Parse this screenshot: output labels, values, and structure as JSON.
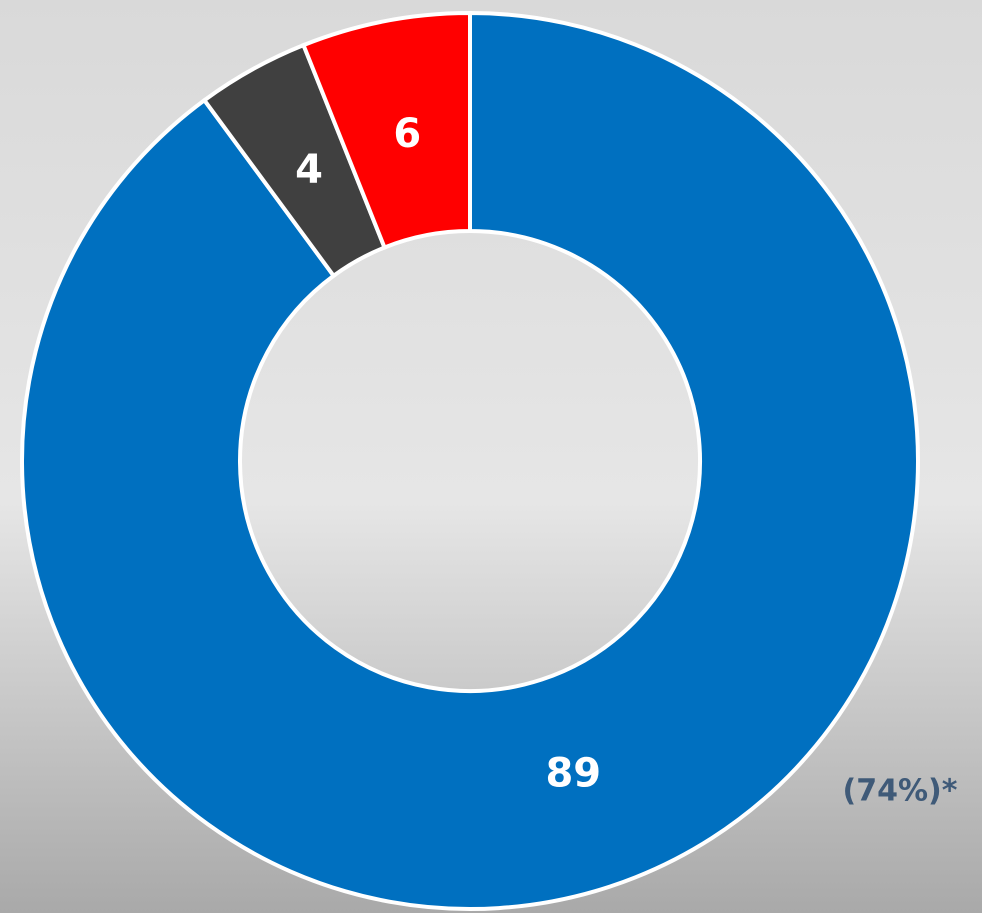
{
  "chart_data": {
    "type": "donut",
    "categories": [
      null,
      null,
      null
    ],
    "series": [
      {
        "name": null,
        "values": [
          89,
          4,
          6
        ],
        "colors": [
          "#0070c0",
          "#404040",
          "#ff0000"
        ]
      }
    ],
    "annotation": "(74%)*"
  }
}
